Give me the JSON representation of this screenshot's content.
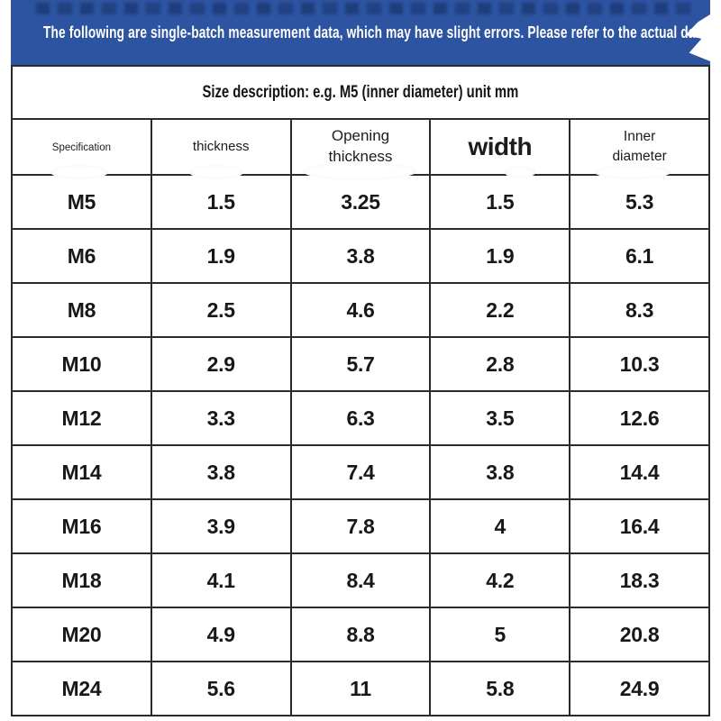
{
  "banner": {
    "notice": "The following are single-batch measurement data, which may have slight errors. Please refer to the actual data",
    "bg_color": "#2d54a1",
    "text_color": "#ffffff"
  },
  "size_note": "Size description: e.g. M5 (inner diameter) unit mm",
  "table": {
    "headers": [
      "Specification",
      "thickness",
      "Opening thickness",
      "width",
      "Inner diameter"
    ],
    "rows": [
      [
        "M5",
        "1.5",
        "3.25",
        "1.5",
        "5.3"
      ],
      [
        "M6",
        "1.9",
        "3.8",
        "1.9",
        "6.1"
      ],
      [
        "M8",
        "2.5",
        "4.6",
        "2.2",
        "8.3"
      ],
      [
        "M10",
        "2.9",
        "5.7",
        "2.8",
        "10.3"
      ],
      [
        "M12",
        "3.3",
        "6.3",
        "3.5",
        "12.6"
      ],
      [
        "M14",
        "3.8",
        "7.4",
        "3.8",
        "14.4"
      ],
      [
        "M16",
        "3.9",
        "7.8",
        "4",
        "16.4"
      ],
      [
        "M18",
        "4.1",
        "8.4",
        "4.2",
        "18.3"
      ],
      [
        "M20",
        "4.9",
        "8.8",
        "5",
        "20.8"
      ],
      [
        "M24",
        "5.6",
        "11",
        "5.8",
        "24.9"
      ]
    ]
  },
  "colors": {
    "banner_bg": "#2d54a1",
    "border": "#2b2b2b",
    "text": "#1a1a1a",
    "background": "#ffffff"
  }
}
